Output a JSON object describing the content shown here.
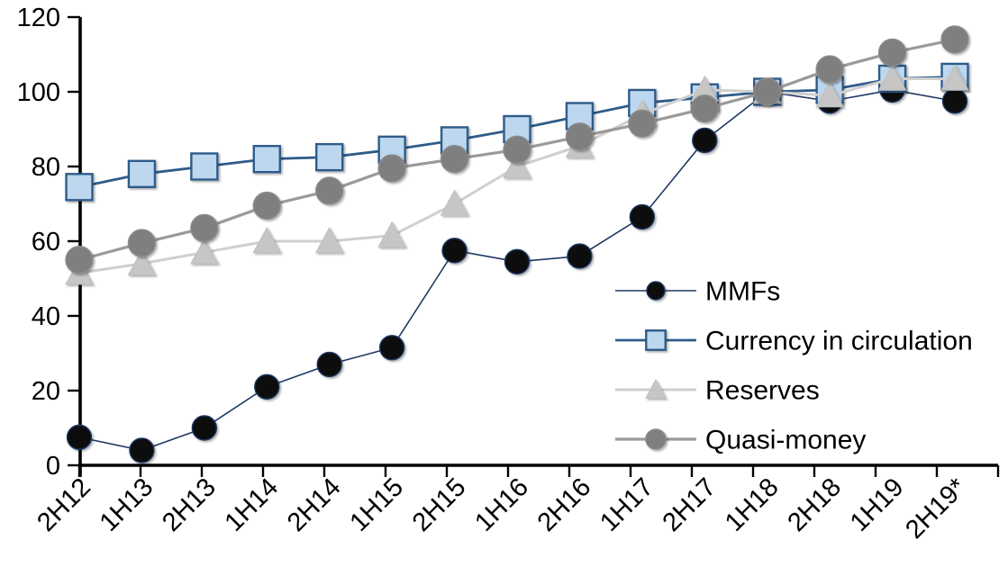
{
  "chart_data": {
    "type": "line",
    "title": "",
    "xlabel": "",
    "ylabel": "",
    "grid": false,
    "legend_position": "inside-right",
    "ylim": [
      0,
      120
    ],
    "ytick_interval": 20,
    "y_tick_labels": [
      "0",
      "20",
      "40",
      "60",
      "80",
      "100",
      "120"
    ],
    "categories": [
      "2H12",
      "1H13",
      "2H13",
      "1H14",
      "2H14",
      "1H15",
      "2H15",
      "1H16",
      "2H16",
      "1H17",
      "2H17",
      "1H18",
      "2H18",
      "1H19",
      "2H19*"
    ],
    "series": [
      {
        "name": "MMFs",
        "marker": "circle",
        "marker_fill": "#0a0a10",
        "marker_edge": "#1F3864",
        "line_color": "#1F3864",
        "line_width": 1.6,
        "marker_size": 27,
        "values": [
          7.5,
          4,
          10,
          21,
          27,
          31.5,
          57.5,
          54.5,
          56,
          66.5,
          87,
          100,
          97.5,
          100.5,
          97.5
        ]
      },
      {
        "name": "Currency in circulation",
        "marker": "square",
        "marker_fill": "#BDD7EE",
        "marker_edge": "#2E5C8A",
        "line_color": "#2E5C8A",
        "line_width": 2.8,
        "marker_size": 29,
        "values": [
          74.5,
          78,
          80,
          82,
          82.5,
          84.5,
          87,
          90,
          93.5,
          97,
          98.5,
          100,
          100.5,
          103.5,
          104
        ]
      },
      {
        "name": "Reserves",
        "marker": "triangle",
        "marker_fill": "#C6C6C6",
        "marker_edge": "#BFBFBF",
        "line_color": "#CFCFCF",
        "line_width": 3,
        "marker_size": 30,
        "values": [
          51.5,
          54,
          57,
          60,
          60,
          61.5,
          70,
          80,
          85.5,
          94,
          100.5,
          100,
          99,
          103.5,
          103.5
        ]
      },
      {
        "name": "Quasi-money",
        "marker": "circle",
        "marker_fill": "#7F7F7F",
        "marker_edge": "#8C8C8C",
        "line_color": "#9A9A9A",
        "line_width": 3.2,
        "marker_size": 30,
        "values": [
          55,
          59.5,
          63.5,
          69.5,
          73.5,
          79.5,
          82,
          84.5,
          88,
          91.5,
          95.5,
          100,
          106,
          110.5,
          114
        ]
      }
    ],
    "axis_color": "#000000",
    "label_color": "#000000"
  }
}
